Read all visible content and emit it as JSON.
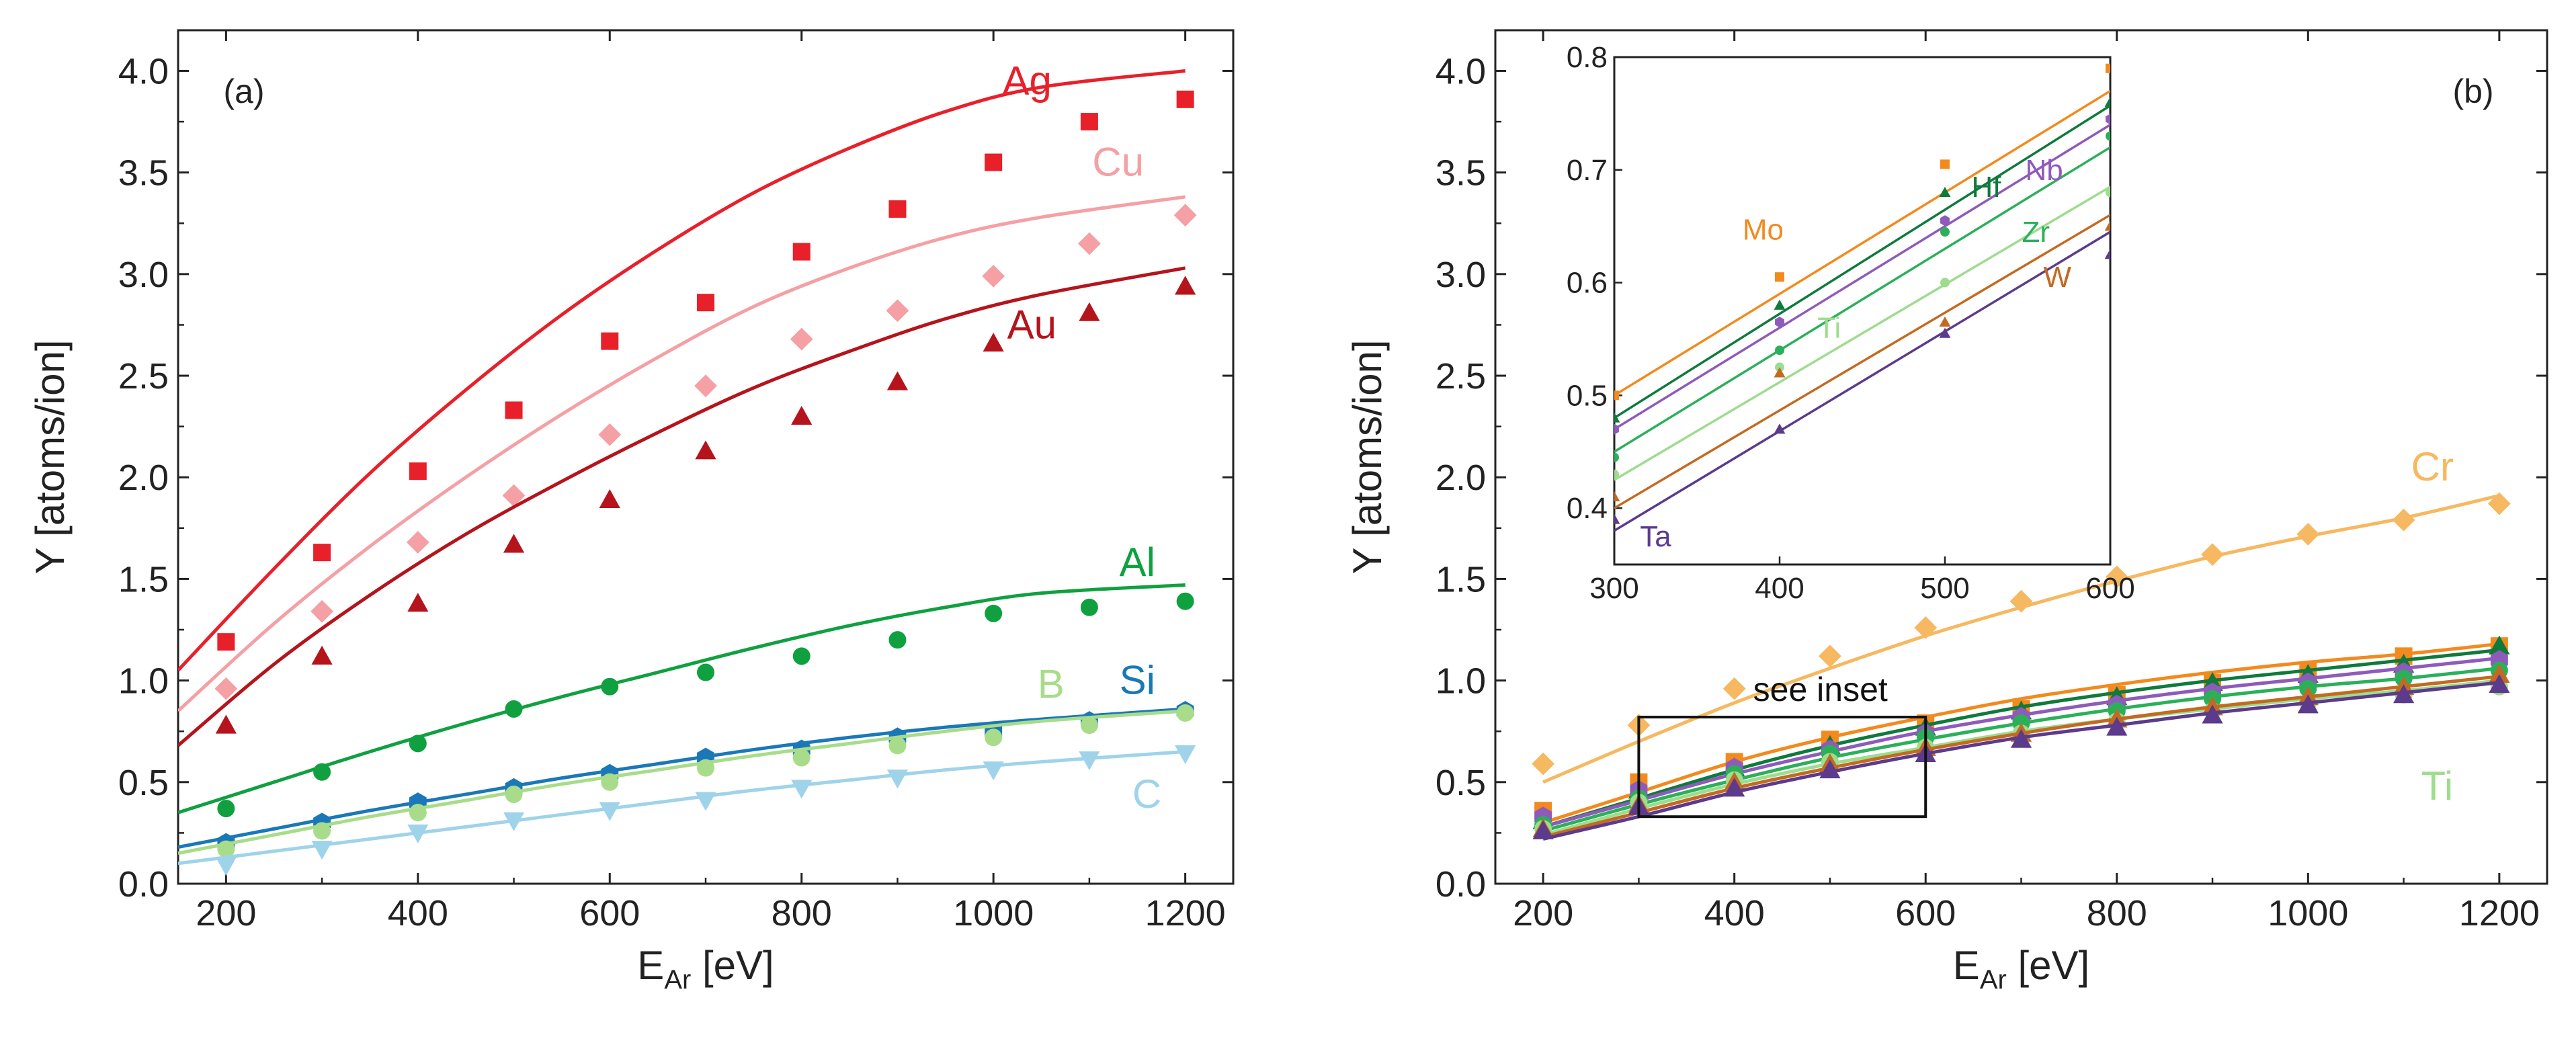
{
  "chart_data": [
    {
      "type": "scatter",
      "panel_label": "(a)",
      "xlabel": "E",
      "xlabel_sub": "Ar",
      "xlabel_unit": " [eV]",
      "ylabel": "Y [atoms/ion]",
      "xlim": [
        150,
        1250
      ],
      "ylim": [
        0,
        4.2
      ],
      "xticks": [
        200,
        400,
        600,
        800,
        1000,
        1200
      ],
      "yticks": [
        0.0,
        0.5,
        1.0,
        1.5,
        2.0,
        2.5,
        3.0,
        3.5,
        4.0
      ],
      "ytick_labels": [
        "0.0",
        "0.5",
        "1.0",
        "1.5",
        "2.0",
        "2.5",
        "3.0",
        "3.5",
        "4.0"
      ],
      "xtick_labels": [
        "200",
        "400",
        "600",
        "800",
        "1000",
        "1200"
      ],
      "x": [
        200,
        300,
        400,
        500,
        600,
        700,
        800,
        900,
        1000,
        1100,
        1200
      ],
      "series": [
        {
          "name": "Ag",
          "color": "#e8202a",
          "marker": "square",
          "label_x": 1035,
          "label_y": 3.95,
          "values": [
            1.19,
            1.63,
            2.03,
            2.33,
            2.67,
            2.86,
            3.11,
            3.32,
            3.55,
            3.75,
            3.86
          ],
          "fit": [
            1.05,
            1.55,
            2.02,
            2.43,
            2.8,
            3.12,
            3.4,
            3.62,
            3.8,
            3.92,
            4.0
          ],
          "fit_x": [
            150,
            250,
            350,
            450,
            550,
            650,
            750,
            850,
            950,
            1050,
            1200
          ]
        },
        {
          "name": "Cu",
          "color": "#f4a0a4",
          "marker": "diamond",
          "label_x": 1130,
          "label_y": 3.55,
          "values": [
            0.96,
            1.34,
            1.68,
            1.91,
            2.21,
            2.45,
            2.68,
            2.82,
            2.99,
            3.15,
            3.29
          ],
          "fit": [
            0.85,
            1.28,
            1.66,
            2.0,
            2.31,
            2.59,
            2.84,
            3.03,
            3.18,
            3.28,
            3.38
          ],
          "fit_x": [
            150,
            250,
            350,
            450,
            550,
            650,
            750,
            850,
            950,
            1050,
            1200
          ]
        },
        {
          "name": "Au",
          "color": "#b5141c",
          "marker": "triangle",
          "label_x": 1040,
          "label_y": 2.75,
          "values": [
            0.78,
            1.12,
            1.38,
            1.67,
            1.89,
            2.13,
            2.3,
            2.47,
            2.66,
            2.81,
            2.94
          ],
          "fit": [
            0.68,
            1.08,
            1.42,
            1.72,
            1.98,
            2.22,
            2.44,
            2.62,
            2.78,
            2.9,
            3.03
          ],
          "fit_x": [
            150,
            250,
            350,
            450,
            550,
            650,
            750,
            850,
            950,
            1050,
            1200
          ]
        },
        {
          "name": "Al",
          "color": "#10a040",
          "marker": "circle",
          "label_x": 1150,
          "label_y": 1.58,
          "values": [
            0.37,
            0.55,
            0.69,
            0.86,
            0.97,
            1.04,
            1.12,
            1.2,
            1.33,
            1.36,
            1.39
          ],
          "fit": [
            0.35,
            0.5,
            0.65,
            0.79,
            0.92,
            1.04,
            1.16,
            1.27,
            1.36,
            1.43,
            1.47
          ],
          "fit_x": [
            150,
            250,
            350,
            450,
            550,
            650,
            750,
            850,
            950,
            1050,
            1200
          ]
        },
        {
          "name": "Si",
          "color": "#1a78b8",
          "marker": "hexagon",
          "label_x": 1150,
          "label_y": 1.0,
          "values": [
            0.2,
            0.3,
            0.4,
            0.47,
            0.54,
            0.62,
            0.66,
            0.72,
            0.75,
            0.8,
            0.85
          ],
          "fit": [
            0.18,
            0.27,
            0.36,
            0.44,
            0.52,
            0.59,
            0.66,
            0.72,
            0.77,
            0.81,
            0.86
          ],
          "fit_x": [
            150,
            250,
            350,
            450,
            550,
            650,
            750,
            850,
            950,
            1050,
            1200
          ]
        },
        {
          "name": "B",
          "color": "#a8dc8a",
          "marker": "circle",
          "label_x": 1060,
          "label_y": 0.98,
          "values": [
            0.17,
            0.26,
            0.35,
            0.44,
            0.5,
            0.57,
            0.62,
            0.68,
            0.72,
            0.78,
            0.84
          ],
          "fit": [
            0.15,
            0.24,
            0.33,
            0.41,
            0.49,
            0.56,
            0.63,
            0.69,
            0.75,
            0.8,
            0.85
          ],
          "fit_x": [
            150,
            250,
            350,
            450,
            550,
            650,
            750,
            850,
            950,
            1050,
            1200
          ]
        },
        {
          "name": "C",
          "color": "#9fd3ea",
          "marker": "invtriangle",
          "label_x": 1160,
          "label_y": 0.44,
          "values": [
            0.09,
            0.17,
            0.25,
            0.31,
            0.36,
            0.41,
            0.47,
            0.52,
            0.56,
            0.61,
            0.64
          ],
          "fit": [
            0.1,
            0.16,
            0.22,
            0.28,
            0.34,
            0.4,
            0.46,
            0.51,
            0.56,
            0.6,
            0.65
          ],
          "fit_x": [
            150,
            250,
            350,
            450,
            550,
            650,
            750,
            850,
            950,
            1050,
            1200
          ]
        }
      ]
    },
    {
      "type": "scatter",
      "panel_label": "(b)",
      "xlabel": "E",
      "xlabel_sub": "Ar",
      "xlabel_unit": " [eV]",
      "ylabel": "Y [atoms/ion]",
      "xlim": [
        150,
        1250
      ],
      "ylim": [
        0,
        4.2
      ],
      "xticks": [
        200,
        400,
        600,
        800,
        1000,
        1200
      ],
      "yticks": [
        0.0,
        0.5,
        1.0,
        1.5,
        2.0,
        2.5,
        3.0,
        3.5,
        4.0
      ],
      "ytick_labels": [
        "0.0",
        "0.5",
        "1.0",
        "1.5",
        "2.0",
        "2.5",
        "3.0",
        "3.5",
        "4.0"
      ],
      "xtick_labels": [
        "200",
        "400",
        "600",
        "800",
        "1000",
        "1200"
      ],
      "x": [
        200,
        300,
        400,
        500,
        600,
        700,
        800,
        900,
        1000,
        1100,
        1200
      ],
      "annotation": "see inset",
      "inset_box": {
        "x": [
          300,
          600
        ],
        "y": [
          0.33,
          0.82
        ]
      },
      "series": [
        {
          "name": "Cr",
          "color": "#f6b860",
          "marker": "diamond",
          "label_x": 1130,
          "label_y": 2.05,
          "show_label": true,
          "values": [
            0.59,
            0.78,
            0.96,
            1.12,
            1.26,
            1.39,
            1.51,
            1.62,
            1.72,
            1.79,
            1.87
          ],
          "fit": [
            0.5,
            0.7,
            0.89,
            1.06,
            1.22,
            1.36,
            1.49,
            1.61,
            1.71,
            1.8,
            1.91
          ]
        },
        {
          "name": "Mo",
          "color": "#f28a1e",
          "marker": "square",
          "values": [
            0.36,
            0.5,
            0.6,
            0.71,
            0.79,
            0.86,
            0.93,
            0.99,
            1.05,
            1.12,
            1.17
          ],
          "fit": [
            0.3,
            0.45,
            0.6,
            0.72,
            0.82,
            0.91,
            0.98,
            1.04,
            1.09,
            1.13,
            1.18
          ]
        },
        {
          "name": "Hf",
          "color": "#0f7a3c",
          "marker": "triangle",
          "values": [
            0.31,
            0.46,
            0.57,
            0.68,
            0.77,
            0.85,
            0.92,
            0.99,
            1.03,
            1.08,
            1.17
          ],
          "fit": [
            0.28,
            0.42,
            0.56,
            0.68,
            0.78,
            0.87,
            0.94,
            1.0,
            1.05,
            1.1,
            1.15
          ]
        },
        {
          "name": "Nb",
          "color": "#8e5bbb",
          "marker": "hexagon",
          "values": [
            0.33,
            0.46,
            0.57,
            0.66,
            0.74,
            0.82,
            0.88,
            0.94,
            0.99,
            1.04,
            1.1
          ],
          "fit": [
            0.28,
            0.41,
            0.54,
            0.65,
            0.75,
            0.83,
            0.9,
            0.96,
            1.01,
            1.06,
            1.11
          ]
        },
        {
          "name": "Zr",
          "color": "#2bb05a",
          "marker": "circle",
          "values": [
            0.29,
            0.42,
            0.54,
            0.64,
            0.72,
            0.79,
            0.85,
            0.91,
            0.96,
            1.01,
            1.05
          ],
          "fit": [
            0.26,
            0.39,
            0.51,
            0.62,
            0.71,
            0.79,
            0.86,
            0.92,
            0.97,
            1.01,
            1.06
          ]
        },
        {
          "name": "Ti",
          "color": "#9edc8e",
          "marker": "circle",
          "label_x": 1135,
          "label_y": 0.48,
          "show_label": true,
          "values": [
            0.27,
            0.4,
            0.51,
            0.6,
            0.67,
            0.74,
            0.8,
            0.85,
            0.89,
            0.93,
            0.97
          ],
          "fit": [
            0.24,
            0.37,
            0.49,
            0.59,
            0.67,
            0.75,
            0.81,
            0.86,
            0.91,
            0.95,
            1.0
          ]
        },
        {
          "name": "W",
          "color": "#c36a22",
          "marker": "triangle",
          "values": [
            0.27,
            0.39,
            0.5,
            0.59,
            0.67,
            0.74,
            0.81,
            0.87,
            0.92,
            0.97,
            1.03
          ],
          "fit": [
            0.23,
            0.35,
            0.47,
            0.57,
            0.66,
            0.74,
            0.81,
            0.87,
            0.92,
            0.97,
            1.02
          ]
        },
        {
          "name": "Ta",
          "color": "#5c3a8c",
          "marker": "triangle",
          "values": [
            0.26,
            0.38,
            0.47,
            0.56,
            0.64,
            0.71,
            0.77,
            0.83,
            0.88,
            0.93,
            0.98
          ],
          "fit": [
            0.22,
            0.33,
            0.45,
            0.55,
            0.64,
            0.72,
            0.78,
            0.84,
            0.89,
            0.94,
            0.99
          ]
        }
      ],
      "inset": {
        "xlim": [
          300,
          600
        ],
        "ylim": [
          0.35,
          0.8
        ],
        "xticks": [
          300,
          400,
          500,
          600
        ],
        "xtick_labels": [
          "300",
          "400",
          "500",
          "600"
        ],
        "yticks": [
          0.4,
          0.5,
          0.6,
          0.7,
          0.8
        ],
        "ytick_labels": [
          "0.4",
          "0.5",
          "0.6",
          "0.7",
          "0.8"
        ],
        "x": [
          300,
          400,
          500,
          600
        ],
        "series": [
          {
            "name": "Mo",
            "color": "#f28a1e",
            "marker": "square",
            "label_x": 390,
            "label_y": 0.647,
            "values": [
              0.5,
              0.605,
              0.705,
              0.79
            ],
            "fit": [
              0.5,
              0.595,
              0.685,
              0.77
            ]
          },
          {
            "name": "Hf",
            "color": "#0f7a3c",
            "marker": "triangle",
            "label_x": 525,
            "label_y": 0.685,
            "values": [
              0.48,
              0.58,
              0.68,
              0.76
            ],
            "fit": [
              0.48,
              0.575,
              0.668,
              0.757
            ]
          },
          {
            "name": "Nb",
            "color": "#8e5bbb",
            "marker": "hexagon",
            "label_x": 560,
            "label_y": 0.7,
            "values": [
              0.47,
              0.565,
              0.655,
              0.745
            ],
            "fit": [
              0.47,
              0.562,
              0.65,
              0.74
            ]
          },
          {
            "name": "Zr",
            "color": "#2bb05a",
            "marker": "circle",
            "label_x": 555,
            "label_y": 0.645,
            "values": [
              0.445,
              0.54,
              0.645,
              0.73
            ],
            "fit": [
              0.45,
              0.54,
              0.63,
              0.72
            ]
          },
          {
            "name": "Ti",
            "color": "#9edc8e",
            "marker": "circle",
            "label_x": 430,
            "label_y": 0.56,
            "values": [
              0.43,
              0.525,
              0.6,
              0.68
            ],
            "fit": [
              0.425,
              0.515,
              0.6,
              0.685
            ]
          },
          {
            "name": "W",
            "color": "#c36a22",
            "marker": "triangle",
            "label_x": 568,
            "label_y": 0.605,
            "values": [
              0.41,
              0.52,
              0.565,
              0.65
            ],
            "fit": [
              0.4,
              0.49,
              0.575,
              0.66
            ]
          },
          {
            "name": "Ta",
            "color": "#5c3a8c",
            "marker": "triangle",
            "label_x": 325,
            "label_y": 0.375,
            "values": [
              0.39,
              0.47,
              0.555,
              0.625
            ],
            "fit": [
              0.38,
              0.47,
              0.56,
              0.645
            ]
          }
        ]
      }
    }
  ]
}
